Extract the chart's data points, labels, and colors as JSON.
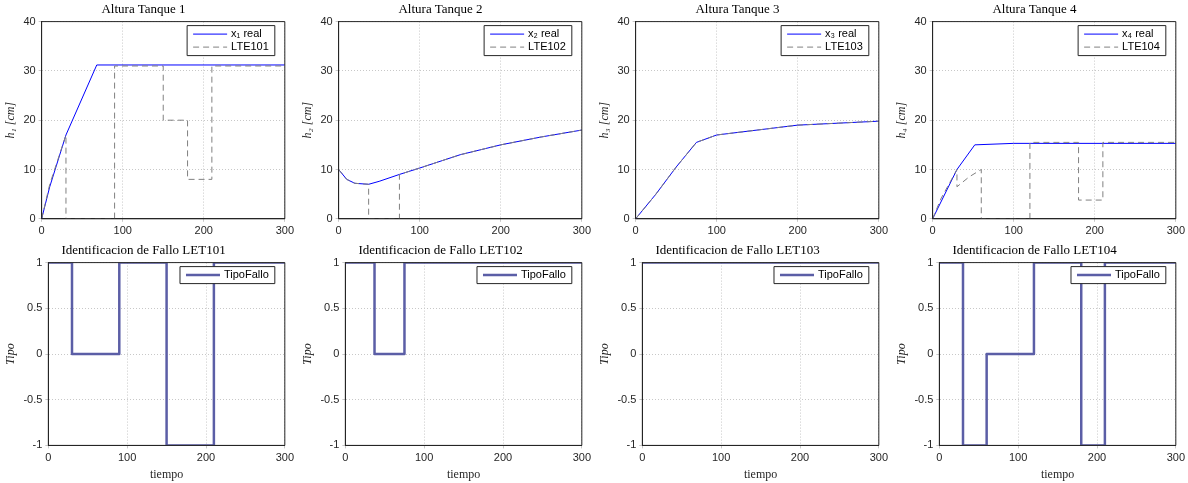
{
  "chart_data": [
    {
      "type": "line",
      "title": "Altura Tanque 1",
      "ylabel": "h₁ [cm]",
      "xlim": [
        0,
        300
      ],
      "xticks": [
        0,
        100,
        200,
        300
      ],
      "ylim": [
        0,
        40
      ],
      "yticks": [
        0,
        10,
        20,
        30,
        40
      ],
      "grid": true,
      "legend": "top right",
      "series": [
        {
          "name": "x₁ real",
          "color": "#0000ff",
          "line_style": "solid",
          "x": [
            0,
            10,
            30,
            68,
            300
          ],
          "values": [
            0,
            6.5,
            17,
            31.2,
            31.2
          ]
        },
        {
          "name": "LTE101",
          "color": "#808080",
          "line_style": "dashed",
          "x": [
            0,
            10,
            20,
            30,
            30,
            90,
            90,
            150,
            150,
            180,
            180,
            210,
            210,
            300
          ],
          "values": [
            0,
            7,
            12,
            17,
            0,
            0,
            31,
            31,
            20,
            20,
            8,
            8,
            31,
            31
          ]
        }
      ]
    },
    {
      "type": "line",
      "title": "Altura Tanque 2",
      "ylabel": "h₂ [cm]",
      "xlim": [
        0,
        300
      ],
      "xticks": [
        0,
        100,
        200,
        300
      ],
      "ylim": [
        0,
        40
      ],
      "yticks": [
        0,
        10,
        20,
        30,
        40
      ],
      "grid": true,
      "legend": "top right",
      "series": [
        {
          "name": "x₂ real",
          "color": "#0000ff",
          "line_style": "solid",
          "x": [
            0,
            10,
            20,
            37,
            50,
            75,
            100,
            150,
            200,
            250,
            300
          ],
          "values": [
            10,
            8,
            7.2,
            7,
            7.6,
            9,
            10.3,
            13,
            15,
            16.6,
            18
          ]
        },
        {
          "name": "LTE102",
          "color": "#808080",
          "line_style": "dashed",
          "x": [
            0,
            10,
            20,
            37,
            37,
            75,
            75,
            100,
            150,
            200,
            250,
            300
          ],
          "values": [
            10,
            8,
            7.2,
            7,
            0,
            0,
            9,
            10.3,
            13,
            15,
            16.6,
            18
          ]
        }
      ]
    },
    {
      "type": "line",
      "title": "Altura Tanque 3",
      "ylabel": "h₃ [cm]",
      "xlim": [
        0,
        300
      ],
      "xticks": [
        0,
        100,
        200,
        300
      ],
      "ylim": [
        0,
        40
      ],
      "yticks": [
        0,
        10,
        20,
        30,
        40
      ],
      "grid": true,
      "legend": "top right",
      "series": [
        {
          "name": "x₃ real",
          "color": "#0000ff",
          "line_style": "solid",
          "x": [
            0,
            25,
            50,
            75,
            100,
            150,
            200,
            250,
            300
          ],
          "values": [
            0,
            5,
            10.5,
            15.5,
            17,
            18,
            19,
            19.4,
            19.8
          ]
        },
        {
          "name": "LTE103",
          "color": "#808080",
          "line_style": "dashed",
          "x": [
            0,
            25,
            50,
            75,
            100,
            150,
            200,
            250,
            300
          ],
          "values": [
            0,
            5,
            10.5,
            15.5,
            17,
            18,
            19,
            19.4,
            19.8
          ]
        }
      ]
    },
    {
      "type": "line",
      "title": "Altura Tanque 4",
      "ylabel": "h₄ [cm]",
      "xlim": [
        0,
        300
      ],
      "xticks": [
        0,
        100,
        200,
        300
      ],
      "ylim": [
        0,
        40
      ],
      "yticks": [
        0,
        10,
        20,
        30,
        40
      ],
      "grid": true,
      "legend": "top right",
      "series": [
        {
          "name": "x₄ real",
          "color": "#0000ff",
          "line_style": "solid",
          "x": [
            0,
            30,
            52,
            100,
            300
          ],
          "values": [
            0,
            10,
            15,
            15.3,
            15.3
          ]
        },
        {
          "name": "LTE104",
          "color": "#808080",
          "line_style": "dashed",
          "x": [
            0,
            10,
            20,
            30,
            30,
            45,
            60,
            60,
            120,
            120,
            180,
            180,
            210,
            210,
            300
          ],
          "values": [
            0,
            4,
            7,
            10,
            6.5,
            8.5,
            10,
            0,
            0,
            15.5,
            15.5,
            3.8,
            3.8,
            15.5,
            15.5
          ]
        }
      ]
    },
    {
      "type": "step",
      "title": "Identificacion de Fallo LET101",
      "xlabel": "tiempo",
      "ylabel": "Tipo",
      "xlim": [
        0,
        300
      ],
      "xticks": [
        0,
        100,
        200,
        300
      ],
      "ylim": [
        -1,
        1
      ],
      "yticks": [
        -1,
        -0.5,
        0,
        0.5,
        1
      ],
      "grid": true,
      "legend": "top right",
      "series": [
        {
          "name": "TipoFallo",
          "color": "#5b5ea6",
          "x": [
            0,
            30,
            90,
            150,
            210,
            300
          ],
          "values": [
            1,
            0,
            1,
            -1,
            1,
            1
          ]
        }
      ]
    },
    {
      "type": "step",
      "title": "Identificacion de Fallo LET102",
      "xlabel": "tiempo",
      "ylabel": "Tipo",
      "xlim": [
        0,
        300
      ],
      "xticks": [
        0,
        100,
        200,
        300
      ],
      "ylim": [
        -1,
        1
      ],
      "yticks": [
        -1,
        -0.5,
        0,
        0.5,
        1
      ],
      "grid": true,
      "legend": "top right",
      "series": [
        {
          "name": "TipoFallo",
          "color": "#5b5ea6",
          "x": [
            0,
            37,
            75,
            300
          ],
          "values": [
            1,
            0,
            1,
            1
          ]
        }
      ]
    },
    {
      "type": "step",
      "title": "Identificacion de Fallo LET103",
      "xlabel": "tiempo",
      "ylabel": "Tipo",
      "xlim": [
        0,
        300
      ],
      "xticks": [
        0,
        100,
        200,
        300
      ],
      "ylim": [
        -1,
        1
      ],
      "yticks": [
        -1,
        -0.5,
        0,
        0.5,
        1
      ],
      "grid": true,
      "legend": "top right",
      "series": [
        {
          "name": "TipoFallo",
          "color": "#5b5ea6",
          "x": [
            0,
            300
          ],
          "values": [
            1,
            1
          ]
        }
      ]
    },
    {
      "type": "step",
      "title": "Identificacion de Fallo LET104",
      "xlabel": "tiempo",
      "ylabel": "Tipo",
      "xlim": [
        0,
        300
      ],
      "xticks": [
        0,
        100,
        200,
        300
      ],
      "ylim": [
        -1,
        1
      ],
      "yticks": [
        -1,
        -0.5,
        0,
        0.5,
        1
      ],
      "grid": true,
      "legend": "top right",
      "series": [
        {
          "name": "TipoFallo",
          "color": "#5b5ea6",
          "x": [
            0,
            30,
            60,
            120,
            180,
            210,
            300
          ],
          "values": [
            1,
            -1,
            0,
            1,
            -1,
            1,
            1
          ]
        }
      ]
    }
  ]
}
